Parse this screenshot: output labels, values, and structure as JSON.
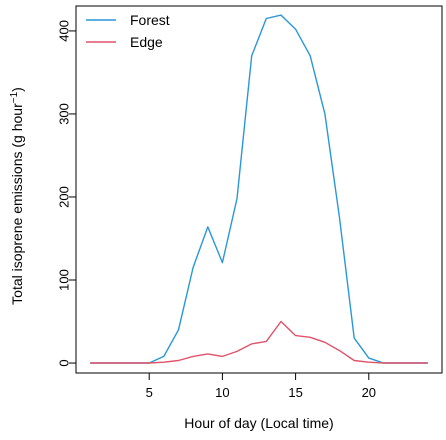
{
  "chart_data": {
    "type": "line",
    "xlabel": "Hour of day (Local time)",
    "ylabel_main": "Total isoprene emissions  (g hour",
    "ylabel_sup": "−1",
    "ylabel_end": ")",
    "xlim": [
      0,
      25
    ],
    "ylim": [
      -12,
      430
    ],
    "x_ticks": [
      5,
      10,
      15,
      20
    ],
    "y_ticks": [
      0,
      100,
      200,
      300,
      400
    ],
    "legend_position": "top-left",
    "grid": false,
    "x": [
      1,
      2,
      3,
      4,
      5,
      6,
      7,
      8,
      9,
      10,
      11,
      12,
      13,
      14,
      15,
      16,
      17,
      18,
      19,
      20,
      21,
      22,
      23,
      24
    ],
    "series": [
      {
        "name": "Forest",
        "color": "#2997d8",
        "values": [
          0,
          0,
          0,
          0,
          0,
          8,
          40,
          115,
          164,
          121,
          198,
          370,
          415,
          419,
          402,
          370,
          300,
          175,
          30,
          6,
          0,
          0,
          0,
          0
        ]
      },
      {
        "name": "Edge",
        "color": "#df536b",
        "values": [
          0,
          0,
          0,
          0,
          0,
          1,
          3,
          8,
          11,
          8,
          14,
          23,
          26,
          50,
          33,
          31,
          25,
          15,
          3,
          1,
          0,
          0,
          0,
          0
        ]
      }
    ]
  }
}
